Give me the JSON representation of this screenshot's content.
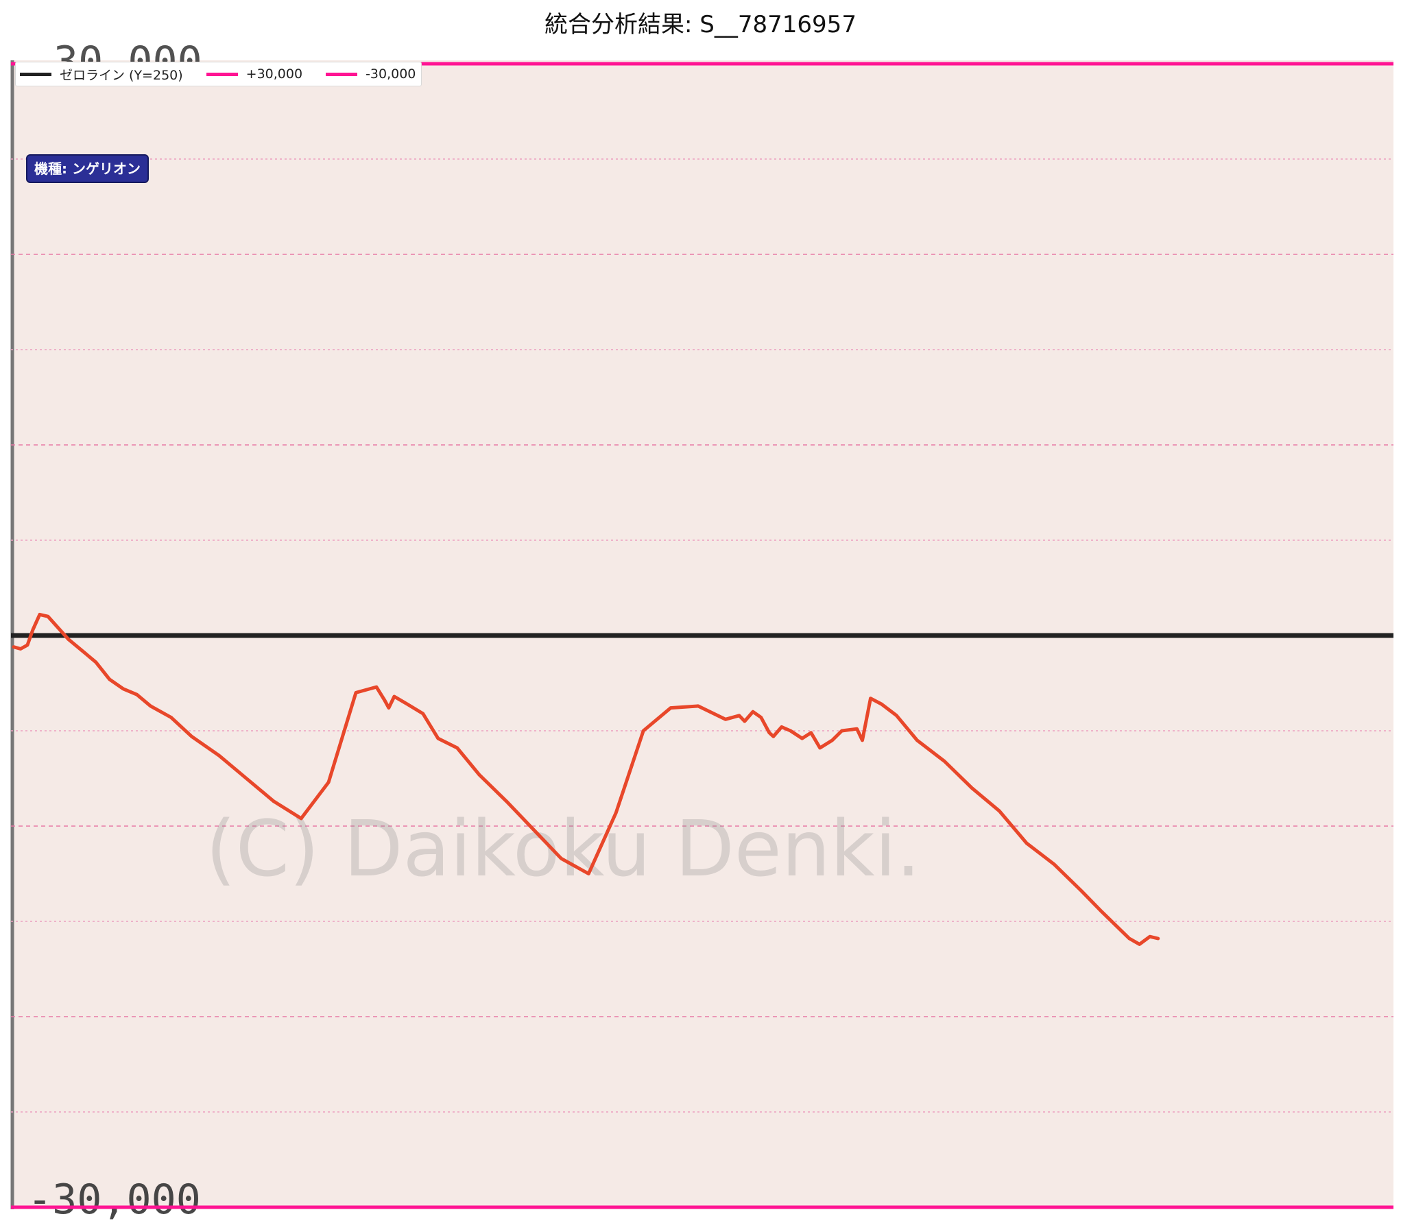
{
  "header": {
    "title": "統合分析結果: S__78716957"
  },
  "badge": {
    "label": "機種: ンゲリオン"
  },
  "legend": {
    "items": [
      {
        "label": "ゼロライン (Y=250)",
        "color": "#222222"
      },
      {
        "label": "+30,000",
        "color": "#ff1493"
      },
      {
        "label": "-30,000",
        "color": "#ff1493"
      }
    ]
  },
  "chart_data": {
    "type": "line",
    "title": "統合分析結果: S__78716957",
    "ylim": [
      -30000,
      30000
    ],
    "yticks": [
      30000,
      25000,
      20000,
      15000,
      10000,
      5000,
      0,
      -5000,
      -10000,
      -15000,
      -20000,
      -25000,
      -30000
    ],
    "grid": true,
    "reference_lines": [
      {
        "label": "ゼロライン (Y=250)",
        "y": 0,
        "color": "#222222"
      },
      {
        "label": "+30,000",
        "y": 30000,
        "color": "#ff1493"
      },
      {
        "label": "-30,000",
        "y": -30000,
        "color": "#ff1493"
      }
    ],
    "image_labels": {
      "top": "30,000",
      "bottom": "-30,000"
    },
    "watermark": "(C) Daikoku Denki.",
    "series": [
      {
        "color": "#e8472a",
        "x": [
          0,
          10,
          20,
          28,
          38,
          50,
          65,
          80,
          100,
          120,
          140,
          160,
          180,
          200,
          230,
          260,
          300,
          340,
          380,
          420,
          460,
          500,
          530,
          542,
          548,
          556,
          575,
          598,
          620,
          648,
          680,
          720,
          760,
          800,
          840,
          880,
          920,
          960,
          1000,
          1040,
          1060,
          1068,
          1080,
          1092,
          1104,
          1110,
          1122,
          1135,
          1152,
          1165,
          1178,
          1196,
          1210,
          1232,
          1240,
          1252,
          1268,
          1290,
          1320,
          1360,
          1400,
          1440,
          1480,
          1520,
          1560,
          1590,
          1610,
          1630,
          1645,
          1660,
          1672
        ],
        "y": [
          -600,
          -700,
          -500,
          300,
          1100,
          1000,
          400,
          -200,
          -800,
          -1400,
          -2300,
          -2800,
          -3100,
          -3700,
          -4300,
          -5300,
          -6300,
          -7500,
          -8700,
          -9600,
          -7700,
          -3000,
          -2700,
          -3400,
          -3800,
          -3200,
          -3600,
          -4100,
          -5400,
          -5900,
          -7300,
          -8700,
          -10200,
          -11700,
          -12500,
          -9300,
          -5000,
          -3800,
          -3700,
          -4400,
          -4200,
          -4500,
          -4000,
          -4300,
          -5100,
          -5300,
          -4800,
          -5000,
          -5400,
          -5100,
          -5900,
          -5500,
          -5000,
          -4900,
          -5500,
          -3300,
          -3600,
          -4200,
          -5500,
          -6600,
          -8000,
          -9200,
          -10900,
          -12000,
          -13400,
          -14500,
          -15200,
          -15900,
          -16200,
          -15800,
          -15900
        ]
      }
    ]
  }
}
